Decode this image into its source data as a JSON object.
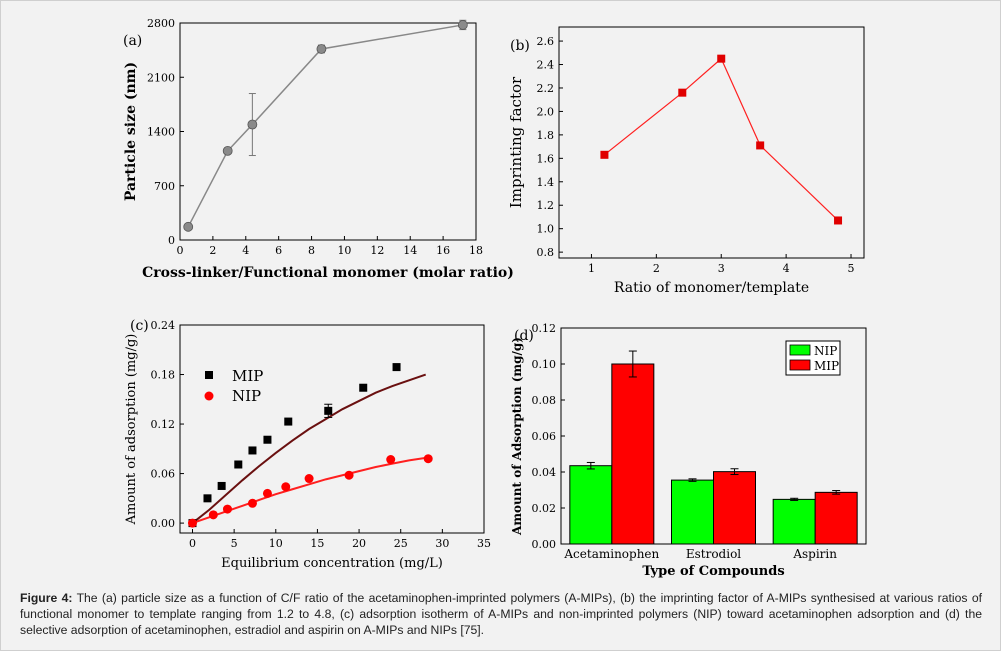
{
  "panels": [
    {
      "id": "a",
      "panel_label": "(a)",
      "colors": {
        "line": "#888888",
        "marker": "#8a8a8a"
      }
    },
    {
      "id": "b",
      "panel_label": "(b)",
      "colors": {
        "line": "#ff2020",
        "marker": "#e00000"
      }
    },
    {
      "id": "c",
      "panel_label": "(c)",
      "colors": {
        "mip": "#000000",
        "nip": "#ff0000",
        "mip_curve": "#6a1010",
        "nip_curve": "#ff2020"
      }
    },
    {
      "id": "d",
      "panel_label": "(d)",
      "colors": {
        "nip": "#00ff00",
        "mip": "#ff0000"
      }
    }
  ],
  "chart_data": [
    {
      "type": "line",
      "title": "",
      "xlabel": "Cross-linker/Functional monomer (molar ratio)",
      "ylabel": "Particle size (nm)",
      "xlim": [
        0,
        18
      ],
      "ylim": [
        0,
        2800
      ],
      "xticks": [
        0,
        2,
        4,
        6,
        8,
        10,
        12,
        14,
        16,
        18
      ],
      "yticks": [
        0,
        700,
        1400,
        2100,
        2800
      ],
      "x": [
        0.5,
        2.9,
        4.4,
        8.6,
        17.2
      ],
      "y": [
        170,
        1150,
        1490,
        2465,
        2775
      ],
      "error": [
        0,
        0,
        400,
        50,
        60
      ],
      "grid": false
    },
    {
      "type": "line",
      "title": "",
      "xlabel": "Ratio of monomer/template",
      "ylabel": "Imprinting factor",
      "xlim": [
        0.5,
        5.2
      ],
      "ylim": [
        0.75,
        2.72
      ],
      "xticks": [
        1,
        2,
        3,
        4,
        5
      ],
      "yticks": [
        0.8,
        1.0,
        1.2,
        1.4,
        1.6,
        1.8,
        2.0,
        2.2,
        2.4,
        2.6
      ],
      "x": [
        1.2,
        2.4,
        3.0,
        3.6,
        4.8
      ],
      "y": [
        1.63,
        2.16,
        2.45,
        1.71,
        1.07
      ],
      "grid": false
    },
    {
      "type": "scatter",
      "title": "",
      "xlabel": "Equilibrium concentration (mg/L)",
      "ylabel": "Amount of adsorption (mg/g)",
      "xlim": [
        -1.5,
        35
      ],
      "ylim": [
        -0.012,
        0.24
      ],
      "xticks": [
        0,
        5,
        10,
        15,
        20,
        25,
        30,
        35
      ],
      "yticks": [
        0.0,
        0.06,
        0.12,
        0.18,
        0.24
      ],
      "legend": "top-left",
      "series": [
        {
          "name": "MIP",
          "x": [
            0,
            1.8,
            3.5,
            5.5,
            7.2,
            9.0,
            11.5,
            16.3,
            20.5,
            24.5
          ],
          "y": [
            0.0,
            0.03,
            0.045,
            0.071,
            0.088,
            0.101,
            0.123,
            0.136,
            0.164,
            0.189
          ],
          "error": [
            0,
            0,
            0,
            0,
            0,
            0,
            0,
            0.008,
            0,
            0
          ],
          "fit_x": [
            0,
            2,
            4,
            6,
            8,
            10,
            12,
            14,
            16,
            18,
            20,
            22,
            24,
            26,
            28
          ],
          "fit_y": [
            0,
            0.016,
            0.034,
            0.052,
            0.069,
            0.085,
            0.1,
            0.114,
            0.126,
            0.138,
            0.148,
            0.158,
            0.166,
            0.173,
            0.18
          ]
        },
        {
          "name": "NIP",
          "x": [
            0,
            2.5,
            4.2,
            7.2,
            9.0,
            11.2,
            14.0,
            18.8,
            23.8,
            28.3
          ],
          "y": [
            0.0,
            0.01,
            0.017,
            0.024,
            0.036,
            0.044,
            0.054,
            0.058,
            0.077,
            0.078
          ],
          "fit_x": [
            0,
            2,
            4,
            6,
            8,
            10,
            12,
            14,
            16,
            18,
            20,
            22,
            24,
            26,
            28
          ],
          "fit_y": [
            0,
            0.007,
            0.014,
            0.021,
            0.028,
            0.035,
            0.041,
            0.047,
            0.053,
            0.058,
            0.063,
            0.068,
            0.072,
            0.076,
            0.079
          ]
        }
      ],
      "grid": false
    },
    {
      "type": "bar",
      "title": "",
      "xlabel": "Type of Compounds",
      "ylabel": "Amount of Adsorption (mg/g)",
      "ylim": [
        0,
        0.12
      ],
      "yticks": [
        0.0,
        0.02,
        0.04,
        0.06,
        0.08,
        0.1,
        0.12
      ],
      "categories": [
        "Acetaminophen",
        "Estrodiol",
        "Aspirin"
      ],
      "legend": "top-right",
      "series": [
        {
          "name": "NIP",
          "values": [
            0.0435,
            0.0355,
            0.0248
          ],
          "error": [
            0.0018,
            0.0007,
            0.0006
          ]
        },
        {
          "name": "MIP",
          "values": [
            0.1,
            0.0402,
            0.0287
          ],
          "error": [
            0.0072,
            0.0016,
            0.001
          ]
        }
      ],
      "grid": false
    }
  ],
  "caption": {
    "label": "Figure 4:",
    "text": "The (a) particle size as a function of C/F ratio of the acetaminophen-imprinted polymers (A-MIPs), (b) the imprinting factor of A-MIPs synthesised at various ratios of functional monomer to template ranging from 1.2 to 4.8, (c) adsorption isotherm of A-MIPs and non-imprinted polymers (NIP) toward acetaminophen adsorption and (d) the selective adsorption of acetaminophen, estradiol and aspirin on A-MIPs and NIPs [75]."
  }
}
